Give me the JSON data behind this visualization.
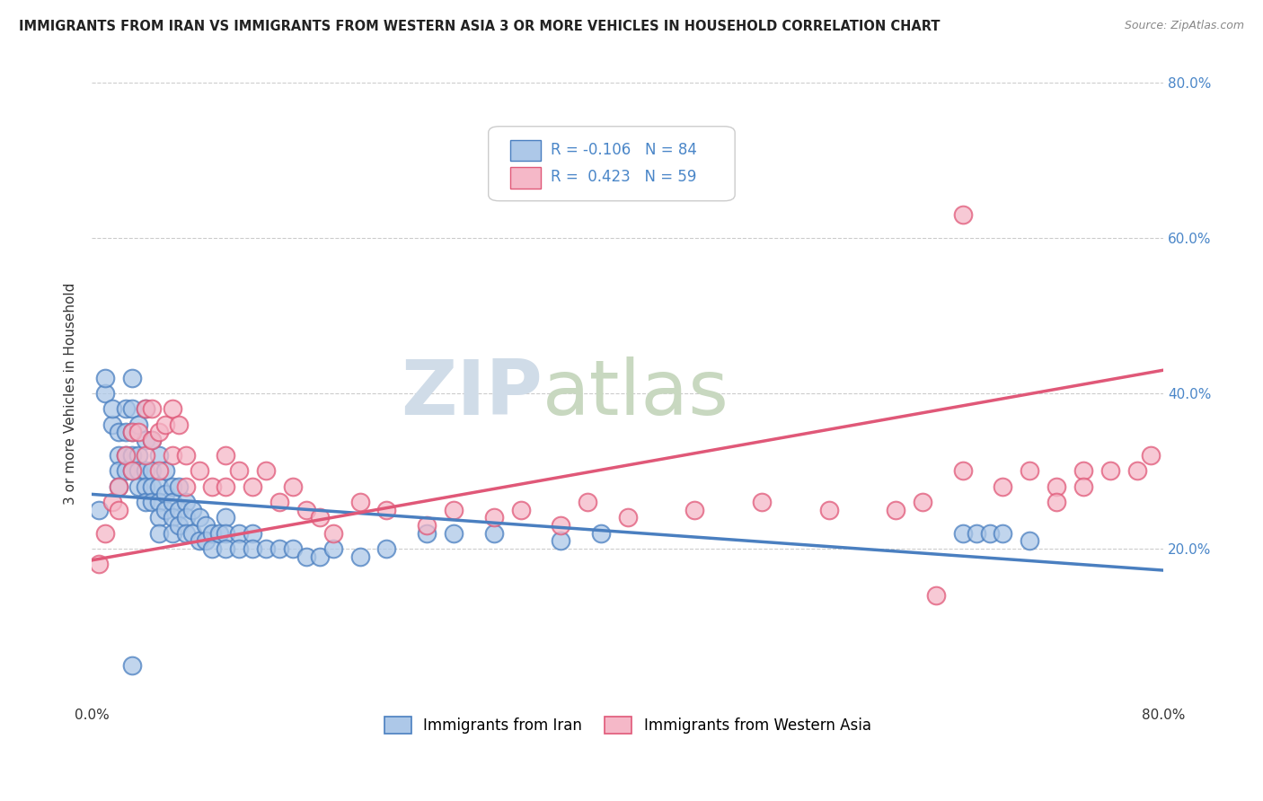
{
  "title": "IMMIGRANTS FROM IRAN VS IMMIGRANTS FROM WESTERN ASIA 3 OR MORE VEHICLES IN HOUSEHOLD CORRELATION CHART",
  "source": "Source: ZipAtlas.com",
  "ylabel": "3 or more Vehicles in Household",
  "legend_iran": "Immigrants from Iran",
  "legend_western": "Immigrants from Western Asia",
  "R_iran": -0.106,
  "N_iran": 84,
  "R_western": 0.423,
  "N_western": 59,
  "color_iran": "#adc8e8",
  "color_western": "#f5b8c8",
  "line_color_iran": "#4a7fc0",
  "line_color_western": "#e05878",
  "xlim": [
    0.0,
    0.8
  ],
  "ylim": [
    0.0,
    0.8
  ],
  "y_ticks": [
    0.0,
    0.2,
    0.4,
    0.6,
    0.8
  ],
  "watermark_zip": "ZIP",
  "watermark_atlas": "atlas",
  "iran_x": [
    0.005,
    0.01,
    0.01,
    0.015,
    0.015,
    0.02,
    0.02,
    0.02,
    0.02,
    0.025,
    0.025,
    0.025,
    0.025,
    0.03,
    0.03,
    0.03,
    0.03,
    0.03,
    0.035,
    0.035,
    0.035,
    0.035,
    0.04,
    0.04,
    0.04,
    0.04,
    0.04,
    0.045,
    0.045,
    0.045,
    0.045,
    0.05,
    0.05,
    0.05,
    0.05,
    0.05,
    0.055,
    0.055,
    0.055,
    0.06,
    0.06,
    0.06,
    0.06,
    0.065,
    0.065,
    0.065,
    0.07,
    0.07,
    0.07,
    0.075,
    0.075,
    0.08,
    0.08,
    0.085,
    0.085,
    0.09,
    0.09,
    0.095,
    0.1,
    0.1,
    0.1,
    0.11,
    0.11,
    0.12,
    0.12,
    0.13,
    0.14,
    0.15,
    0.16,
    0.17,
    0.18,
    0.2,
    0.22,
    0.25,
    0.27,
    0.3,
    0.35,
    0.38,
    0.65,
    0.66,
    0.67,
    0.68,
    0.7,
    0.03
  ],
  "iran_y": [
    0.25,
    0.4,
    0.42,
    0.36,
    0.38,
    0.32,
    0.35,
    0.3,
    0.28,
    0.38,
    0.35,
    0.32,
    0.3,
    0.42,
    0.38,
    0.35,
    0.32,
    0.3,
    0.36,
    0.32,
    0.3,
    0.28,
    0.38,
    0.34,
    0.3,
    0.28,
    0.26,
    0.34,
    0.3,
    0.28,
    0.26,
    0.32,
    0.28,
    0.26,
    0.24,
    0.22,
    0.3,
    0.27,
    0.25,
    0.28,
    0.26,
    0.24,
    0.22,
    0.28,
    0.25,
    0.23,
    0.26,
    0.24,
    0.22,
    0.25,
    0.22,
    0.24,
    0.21,
    0.23,
    0.21,
    0.22,
    0.2,
    0.22,
    0.24,
    0.22,
    0.2,
    0.22,
    0.2,
    0.22,
    0.2,
    0.2,
    0.2,
    0.2,
    0.19,
    0.19,
    0.2,
    0.19,
    0.2,
    0.22,
    0.22,
    0.22,
    0.21,
    0.22,
    0.22,
    0.22,
    0.22,
    0.22,
    0.21,
    0.05
  ],
  "western_x": [
    0.005,
    0.01,
    0.015,
    0.02,
    0.02,
    0.025,
    0.03,
    0.03,
    0.035,
    0.04,
    0.04,
    0.045,
    0.045,
    0.05,
    0.05,
    0.055,
    0.06,
    0.06,
    0.065,
    0.07,
    0.07,
    0.08,
    0.09,
    0.1,
    0.1,
    0.11,
    0.12,
    0.13,
    0.14,
    0.15,
    0.16,
    0.17,
    0.18,
    0.2,
    0.22,
    0.25,
    0.27,
    0.3,
    0.32,
    0.35,
    0.37,
    0.4,
    0.45,
    0.5,
    0.55,
    0.6,
    0.62,
    0.65,
    0.68,
    0.7,
    0.72,
    0.74,
    0.76,
    0.78,
    0.79,
    0.65,
    0.72,
    0.74,
    0.63
  ],
  "western_y": [
    0.18,
    0.22,
    0.26,
    0.28,
    0.25,
    0.32,
    0.35,
    0.3,
    0.35,
    0.38,
    0.32,
    0.38,
    0.34,
    0.35,
    0.3,
    0.36,
    0.38,
    0.32,
    0.36,
    0.32,
    0.28,
    0.3,
    0.28,
    0.32,
    0.28,
    0.3,
    0.28,
    0.3,
    0.26,
    0.28,
    0.25,
    0.24,
    0.22,
    0.26,
    0.25,
    0.23,
    0.25,
    0.24,
    0.25,
    0.23,
    0.26,
    0.24,
    0.25,
    0.26,
    0.25,
    0.25,
    0.26,
    0.3,
    0.28,
    0.3,
    0.28,
    0.3,
    0.3,
    0.3,
    0.32,
    0.63,
    0.26,
    0.28,
    0.14
  ]
}
